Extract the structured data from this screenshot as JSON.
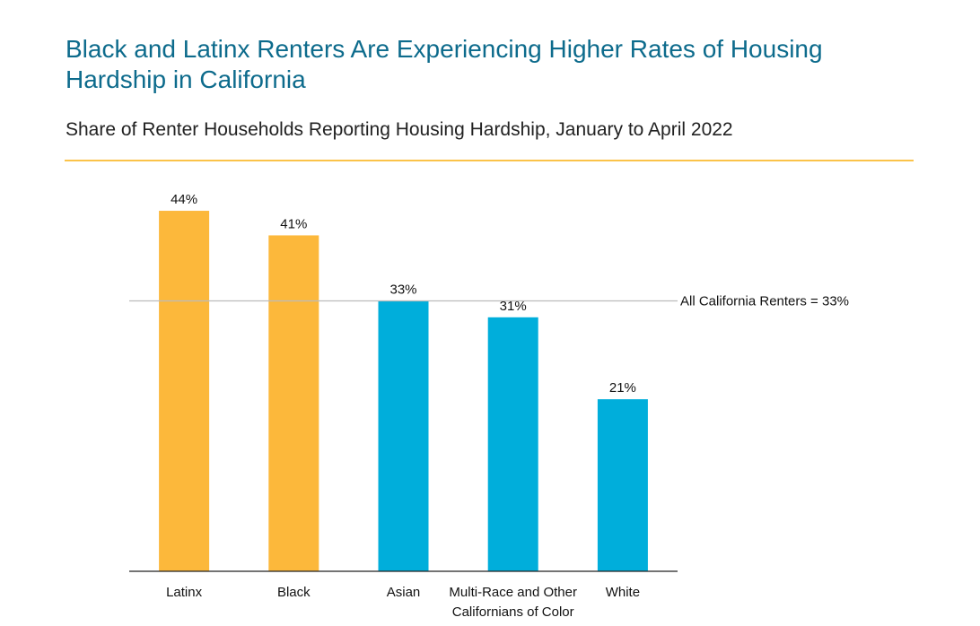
{
  "chart_data": {
    "type": "bar",
    "title": "Black and Latinx Renters Are Experiencing Higher Rates of Housing Hardship in California",
    "subtitle": "Share of Renter Households Reporting Housing Hardship, January to April 2022",
    "categories": [
      "Latinx",
      "Black",
      "Asian",
      "Multi-Race and Other Californians of Color",
      "White"
    ],
    "values": [
      44,
      41,
      33,
      31,
      21
    ],
    "value_labels": [
      "44%",
      "41%",
      "33%",
      "31%",
      "21%"
    ],
    "colors": [
      "#fcb83b",
      "#fcb83b",
      "#00aedb",
      "#00aedb",
      "#00aedb"
    ],
    "ylim": [
      0,
      48
    ],
    "reference_line": {
      "value": 33,
      "label": "All California Renters = 33%"
    }
  }
}
